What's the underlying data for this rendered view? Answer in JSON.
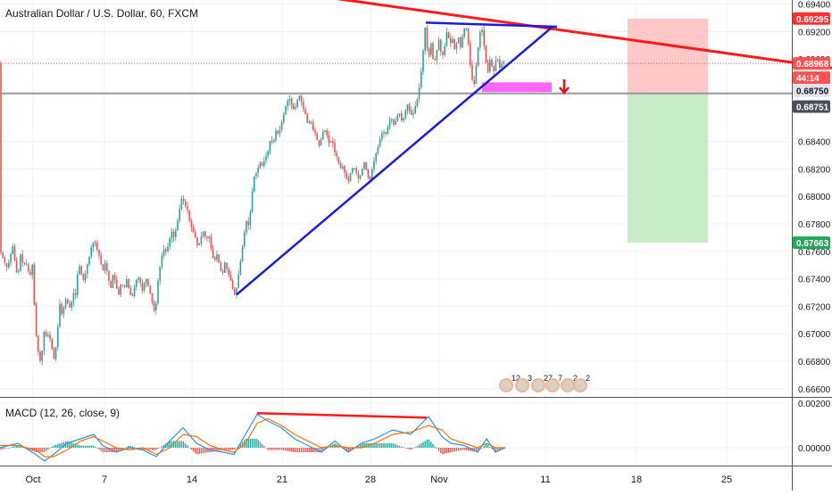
{
  "header": {
    "title": "Australian Dollar / U.S. Dollar, 60, FXCM"
  },
  "macd": {
    "title": "MACD (12, 26, close, 9)"
  },
  "price_tags": {
    "upper_target": "0.69295",
    "current": "0.68968",
    "countdown": "44:14",
    "level1": "0.68750",
    "entry": "0.68751",
    "stop_target": "0.67663"
  },
  "colors": {
    "up": "#26a69a",
    "down": "#ef5350",
    "trendline_red": "#ff1a1a",
    "trendline_blue": "#1a1ae6",
    "zone_pink": "#ff66ff",
    "tp_zone": "#c8ebc8",
    "sl_zone": "#ffc8c8",
    "macd_line": "#2196f3",
    "signal_line": "#ff6d00"
  },
  "events": [
    "12",
    "3",
    "27",
    "7",
    "2",
    "2"
  ],
  "chart_data": {
    "type": "candlestick",
    "title": "Australian Dollar / U.S. Dollar, 60, FXCM",
    "x_ticks": [
      "Oct",
      "7",
      "14",
      "21",
      "28",
      "Nov",
      "11",
      "18",
      "25"
    ],
    "y_ticks": [
      "0.69400",
      "0.69200",
      "0.69000",
      "0.68400",
      "0.68200",
      "0.68000",
      "0.67800",
      "0.67600",
      "0.67400",
      "0.67200",
      "0.67000",
      "0.66800",
      "0.66600"
    ],
    "ylim": [
      0.6654,
      0.6943
    ],
    "price_path": [
      [
        0,
        0.6762
      ],
      [
        3,
        0.6758
      ],
      [
        6,
        0.6752
      ],
      [
        9,
        0.6748
      ],
      [
        12,
        0.6754
      ],
      [
        15,
        0.6765
      ],
      [
        18,
        0.6751
      ],
      [
        21,
        0.674
      ],
      [
        24,
        0.6758
      ],
      [
        27,
        0.675
      ],
      [
        30,
        0.6752
      ],
      [
        33,
        0.6745
      ],
      [
        36,
        0.6742
      ],
      [
        38,
        0.6755
      ],
      [
        40,
        0.671
      ],
      [
        43,
        0.669
      ],
      [
        46,
        0.668
      ],
      [
        48,
        0.6685
      ],
      [
        50,
        0.6702
      ],
      [
        53,
        0.6698
      ],
      [
        56,
        0.67
      ],
      [
        59,
        0.669
      ],
      [
        62,
        0.668
      ],
      [
        65,
        0.6698
      ],
      [
        68,
        0.6722
      ],
      [
        71,
        0.6712
      ],
      [
        74,
        0.6726
      ],
      [
        77,
        0.6722
      ],
      [
        80,
        0.6718
      ],
      [
        83,
        0.673
      ],
      [
        86,
        0.6728
      ],
      [
        89,
        0.6752
      ],
      [
        92,
        0.6744
      ],
      [
        95,
        0.6738
      ],
      [
        98,
        0.6748
      ],
      [
        101,
        0.6756
      ],
      [
        104,
        0.6765
      ],
      [
        107,
        0.6768
      ],
      [
        110,
        0.6761
      ],
      [
        113,
        0.6755
      ],
      [
        116,
        0.6745
      ],
      [
        119,
        0.6752
      ],
      [
        122,
        0.6742
      ],
      [
        125,
        0.6732
      ],
      [
        128,
        0.6745
      ],
      [
        131,
        0.6735
      ],
      [
        134,
        0.6728
      ],
      [
        137,
        0.6738
      ],
      [
        140,
        0.6732
      ],
      [
        143,
        0.674
      ],
      [
        146,
        0.673
      ],
      [
        149,
        0.6726
      ],
      [
        152,
        0.6735
      ],
      [
        155,
        0.6742
      ],
      [
        158,
        0.6738
      ],
      [
        161,
        0.673
      ],
      [
        164,
        0.6742
      ],
      [
        167,
        0.6735
      ],
      [
        170,
        0.6728
      ],
      [
        173,
        0.6718
      ],
      [
        175,
        0.6715
      ],
      [
        178,
        0.6738
      ],
      [
        181,
        0.6752
      ],
      [
        184,
        0.6762
      ],
      [
        187,
        0.676
      ],
      [
        190,
        0.6765
      ],
      [
        193,
        0.6775
      ],
      [
        196,
        0.677
      ],
      [
        199,
        0.6778
      ],
      [
        202,
        0.679
      ],
      [
        205,
        0.68
      ],
      [
        208,
        0.6794
      ],
      [
        211,
        0.679
      ],
      [
        214,
        0.678
      ],
      [
        217,
        0.6775
      ],
      [
        220,
        0.677
      ],
      [
        223,
        0.6762
      ],
      [
        226,
        0.677
      ],
      [
        229,
        0.6775
      ],
      [
        232,
        0.6768
      ],
      [
        235,
        0.6772
      ],
      [
        238,
        0.676
      ],
      [
        241,
        0.6752
      ],
      [
        244,
        0.6758
      ],
      [
        247,
        0.675
      ],
      [
        250,
        0.6742
      ],
      [
        253,
        0.6752
      ],
      [
        256,
        0.6745
      ],
      [
        259,
        0.674
      ],
      [
        262,
        0.6732
      ],
      [
        264,
        0.6728
      ],
      [
        266,
        0.6733
      ],
      [
        268,
        0.6742
      ],
      [
        271,
        0.6755
      ],
      [
        274,
        0.677
      ],
      [
        277,
        0.6782
      ],
      [
        280,
        0.6778
      ],
      [
        283,
        0.68
      ],
      [
        286,
        0.6815
      ],
      [
        289,
        0.6818
      ],
      [
        292,
        0.6825
      ],
      [
        295,
        0.6822
      ],
      [
        298,
        0.6828
      ],
      [
        301,
        0.6832
      ],
      [
        304,
        0.6842
      ],
      [
        307,
        0.6838
      ],
      [
        310,
        0.6848
      ],
      [
        313,
        0.6845
      ],
      [
        316,
        0.6852
      ],
      [
        319,
        0.686
      ],
      [
        322,
        0.6868
      ],
      [
        325,
        0.6872
      ],
      [
        328,
        0.6866
      ],
      [
        331,
        0.6862
      ],
      [
        334,
        0.687
      ],
      [
        337,
        0.6874
      ],
      [
        340,
        0.6865
      ],
      [
        343,
        0.686
      ],
      [
        346,
        0.6852
      ],
      [
        349,
        0.6856
      ],
      [
        352,
        0.6848
      ],
      [
        355,
        0.6845
      ],
      [
        358,
        0.6836
      ],
      [
        361,
        0.6842
      ],
      [
        364,
        0.685
      ],
      [
        367,
        0.6845
      ],
      [
        370,
        0.6838
      ],
      [
        373,
        0.6842
      ],
      [
        376,
        0.6832
      ],
      [
        379,
        0.6828
      ],
      [
        382,
        0.682
      ],
      [
        385,
        0.6822
      ],
      [
        388,
        0.6815
      ],
      [
        391,
        0.681
      ],
      [
        394,
        0.6818
      ],
      [
        397,
        0.6822
      ],
      [
        400,
        0.6818
      ],
      [
        403,
        0.6812
      ],
      [
        406,
        0.6818
      ],
      [
        409,
        0.6825
      ],
      [
        412,
        0.6818
      ],
      [
        415,
        0.681
      ],
      [
        418,
        0.682
      ],
      [
        421,
        0.6828
      ],
      [
        424,
        0.6835
      ],
      [
        427,
        0.6842
      ],
      [
        430,
        0.6848
      ],
      [
        433,
        0.6845
      ],
      [
        436,
        0.6852
      ],
      [
        439,
        0.6858
      ],
      [
        442,
        0.6852
      ],
      [
        445,
        0.6856
      ],
      [
        448,
        0.6862
      ],
      [
        451,
        0.6855
      ],
      [
        454,
        0.6858
      ],
      [
        457,
        0.6868
      ],
      [
        460,
        0.6862
      ],
      [
        463,
        0.6858
      ],
      [
        466,
        0.6865
      ],
      [
        469,
        0.6872
      ],
      [
        472,
        0.6885
      ],
      [
        475,
        0.6905
      ],
      [
        477,
        0.6925
      ],
      [
        479,
        0.691
      ],
      [
        481,
        0.69
      ],
      [
        484,
        0.6912
      ],
      [
        487,
        0.6895
      ],
      [
        490,
        0.6905
      ],
      [
        493,
        0.6915
      ],
      [
        496,
        0.69
      ],
      [
        499,
        0.6908
      ],
      [
        502,
        0.6922
      ],
      [
        505,
        0.691
      ],
      [
        508,
        0.6915
      ],
      [
        511,
        0.6905
      ],
      [
        514,
        0.6918
      ],
      [
        517,
        0.6908
      ],
      [
        520,
        0.692
      ],
      [
        523,
        0.6925
      ],
      [
        526,
        0.691
      ],
      [
        528,
        0.6895
      ],
      [
        530,
        0.6885
      ],
      [
        532,
        0.688
      ],
      [
        534,
        0.6892
      ],
      [
        536,
        0.6905
      ],
      [
        538,
        0.6915
      ],
      [
        540,
        0.6925
      ],
      [
        542,
        0.6918
      ],
      [
        544,
        0.6905
      ],
      [
        546,
        0.6895
      ],
      [
        548,
        0.689
      ],
      [
        550,
        0.69
      ],
      [
        552,
        0.6895
      ],
      [
        554,
        0.689
      ],
      [
        556,
        0.6898
      ],
      [
        558,
        0.6902
      ],
      [
        560,
        0.6895
      ],
      [
        562,
        0.6892
      ],
      [
        564,
        0.69
      ],
      [
        566,
        0.6897
      ]
    ],
    "annotations": {
      "resistance_trendline": {
        "from": [
          360,
          0.69455
        ],
        "to": [
          932,
          0.68935
        ]
      },
      "support_trendline": {
        "from": [
          265,
          0.67285
        ],
        "to": [
          618,
          0.6923
        ]
      },
      "triangle_top": {
        "from": [
          477,
          0.69265
        ],
        "to": [
          624,
          0.69235
        ]
      },
      "support_zone": {
        "x": [
          540,
          618
        ],
        "y": [
          0.6876,
          0.6883
        ]
      },
      "stop_loss_zone": {
        "x": [
          703,
          793
        ],
        "y": [
          0.6875,
          0.69295
        ]
      },
      "take_profit_zone": {
        "x": [
          703,
          793
        ],
        "y": [
          0.67663,
          0.6875
        ]
      },
      "horizontal_level": 0.6875,
      "current_price": 0.68968
    },
    "macd": {
      "ylim": [
        -0.0008,
        0.0022
      ],
      "y_ticks": [
        "0.00200",
        "0.00000"
      ],
      "macd_path": [
        [
          0,
          0.0
        ],
        [
          20,
          0.0002
        ],
        [
          40,
          -0.0003
        ],
        [
          50,
          -0.0006
        ],
        [
          60,
          -0.0003
        ],
        [
          75,
          0.0002
        ],
        [
          90,
          0.0004
        ],
        [
          105,
          0.0006
        ],
        [
          115,
          0.0001
        ],
        [
          130,
          -0.0002
        ],
        [
          145,
          0.0
        ],
        [
          160,
          -0.0001
        ],
        [
          175,
          -0.0004
        ],
        [
          190,
          0.0003
        ],
        [
          205,
          0.0009
        ],
        [
          220,
          0.0002
        ],
        [
          235,
          -0.0001
        ],
        [
          250,
          -0.0002
        ],
        [
          262,
          -0.0003
        ],
        [
          275,
          0.0006
        ],
        [
          288,
          0.0015
        ],
        [
          300,
          0.0012
        ],
        [
          315,
          0.0009
        ],
        [
          330,
          0.0004
        ],
        [
          345,
          0.0001
        ],
        [
          360,
          -0.0002
        ],
        [
          375,
          0.0003
        ],
        [
          390,
          -0.0002
        ],
        [
          405,
          0.0002
        ],
        [
          420,
          0.0004
        ],
        [
          440,
          0.0008
        ],
        [
          460,
          0.0006
        ],
        [
          480,
          0.0014
        ],
        [
          495,
          0.0005
        ],
        [
          505,
          0.0002
        ],
        [
          520,
          0.0001
        ],
        [
          535,
          -0.0002
        ],
        [
          545,
          0.0004
        ],
        [
          555,
          -0.0002
        ],
        [
          566,
          0.0
        ]
      ],
      "signal_path": [
        [
          0,
          0.0001
        ],
        [
          20,
          0.0001
        ],
        [
          40,
          -0.0001
        ],
        [
          50,
          -0.0004
        ],
        [
          60,
          -0.0004
        ],
        [
          75,
          -0.0001
        ],
        [
          90,
          0.0003
        ],
        [
          105,
          0.0005
        ],
        [
          115,
          0.0003
        ],
        [
          130,
          0.0
        ],
        [
          145,
          -0.0001
        ],
        [
          160,
          0.0
        ],
        [
          175,
          -0.0003
        ],
        [
          190,
          0.0
        ],
        [
          205,
          0.0006
        ],
        [
          220,
          0.0005
        ],
        [
          235,
          0.0001
        ],
        [
          250,
          -0.0001
        ],
        [
          262,
          -0.0002
        ],
        [
          275,
          0.0002
        ],
        [
          288,
          0.0011
        ],
        [
          300,
          0.0013
        ],
        [
          315,
          0.001
        ],
        [
          330,
          0.0006
        ],
        [
          345,
          0.0003
        ],
        [
          360,
          0.0
        ],
        [
          375,
          0.0001
        ],
        [
          390,
          0.0
        ],
        [
          405,
          0.0
        ],
        [
          420,
          0.0002
        ],
        [
          440,
          0.0006
        ],
        [
          460,
          0.0007
        ],
        [
          480,
          0.001
        ],
        [
          495,
          0.0008
        ],
        [
          505,
          0.0004
        ],
        [
          520,
          0.0002
        ],
        [
          535,
          0.0
        ],
        [
          545,
          0.0002
        ],
        [
          555,
          0.0
        ],
        [
          566,
          0.0
        ]
      ],
      "divergence_line": {
        "from": [
          288,
          0.00155
        ],
        "to": [
          478,
          0.00135
        ]
      }
    }
  }
}
